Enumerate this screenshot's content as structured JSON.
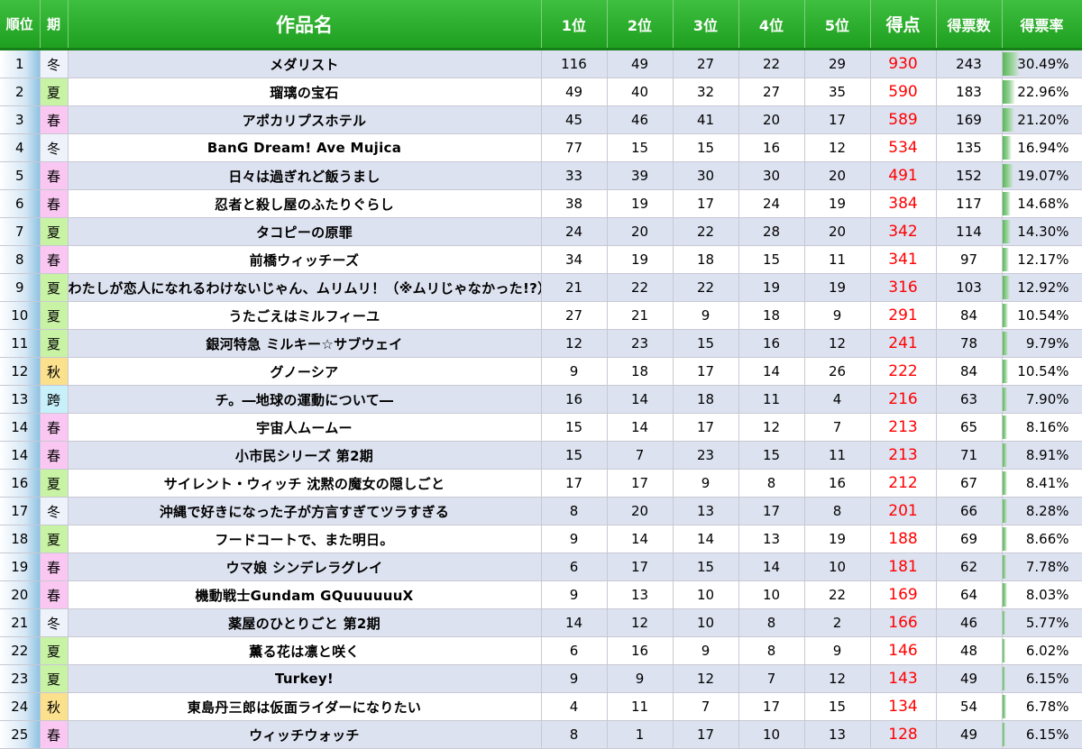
{
  "headers": {
    "rank": "順位",
    "season": "期",
    "title": "作品名",
    "p1": "1位",
    "p2": "2位",
    "p3": "3位",
    "p4": "4位",
    "p5": "5位",
    "score": "得点",
    "votes": "得票数",
    "rate": "得票率"
  },
  "colors": {
    "header_green": "#2aad2a",
    "score_red": "#ff0000",
    "row_alt": "#dde2f0",
    "season_summer": "#c8f2a4",
    "season_spring": "#fac7f2",
    "season_autumn": "#fbe08e",
    "season_cross": "#c7f0fb"
  },
  "rows": [
    {
      "rank": "1",
      "season": "冬",
      "title": "メダリスト",
      "p1": "116",
      "p2": "49",
      "p3": "27",
      "p4": "22",
      "p5": "29",
      "score": "930",
      "votes": "243",
      "rate": "30.49%",
      "rate_value": 30.49
    },
    {
      "rank": "2",
      "season": "夏",
      "title": "瑠璃の宝石",
      "p1": "49",
      "p2": "40",
      "p3": "32",
      "p4": "27",
      "p5": "35",
      "score": "590",
      "votes": "183",
      "rate": "22.96%",
      "rate_value": 22.96
    },
    {
      "rank": "3",
      "season": "春",
      "title": "アポカリプスホテル",
      "p1": "45",
      "p2": "46",
      "p3": "41",
      "p4": "20",
      "p5": "17",
      "score": "589",
      "votes": "169",
      "rate": "21.20%",
      "rate_value": 21.2
    },
    {
      "rank": "4",
      "season": "冬",
      "title": "BanG Dream! Ave Mujica",
      "p1": "77",
      "p2": "15",
      "p3": "15",
      "p4": "16",
      "p5": "12",
      "score": "534",
      "votes": "135",
      "rate": "16.94%",
      "rate_value": 16.94
    },
    {
      "rank": "5",
      "season": "春",
      "title": "日々は過ぎれど飯うまし",
      "p1": "33",
      "p2": "39",
      "p3": "30",
      "p4": "30",
      "p5": "20",
      "score": "491",
      "votes": "152",
      "rate": "19.07%",
      "rate_value": 19.07
    },
    {
      "rank": "6",
      "season": "春",
      "title": "忍者と殺し屋のふたりぐらし",
      "p1": "38",
      "p2": "19",
      "p3": "17",
      "p4": "24",
      "p5": "19",
      "score": "384",
      "votes": "117",
      "rate": "14.68%",
      "rate_value": 14.68
    },
    {
      "rank": "7",
      "season": "夏",
      "title": "タコピーの原罪",
      "p1": "24",
      "p2": "20",
      "p3": "22",
      "p4": "28",
      "p5": "20",
      "score": "342",
      "votes": "114",
      "rate": "14.30%",
      "rate_value": 14.3
    },
    {
      "rank": "8",
      "season": "春",
      "title": "前橋ウィッチーズ",
      "p1": "34",
      "p2": "19",
      "p3": "18",
      "p4": "15",
      "p5": "11",
      "score": "341",
      "votes": "97",
      "rate": "12.17%",
      "rate_value": 12.17
    },
    {
      "rank": "9",
      "season": "夏",
      "title": "わたしが恋人になれるわけないじゃん、ムリムリ！（※ムリじゃなかった!?）",
      "p1": "21",
      "p2": "22",
      "p3": "22",
      "p4": "19",
      "p5": "19",
      "score": "316",
      "votes": "103",
      "rate": "12.92%",
      "rate_value": 12.92
    },
    {
      "rank": "10",
      "season": "夏",
      "title": "うたごえはミルフィーユ",
      "p1": "27",
      "p2": "21",
      "p3": "9",
      "p4": "18",
      "p5": "9",
      "score": "291",
      "votes": "84",
      "rate": "10.54%",
      "rate_value": 10.54
    },
    {
      "rank": "11",
      "season": "夏",
      "title": "銀河特急 ミルキー☆サブウェイ",
      "p1": "12",
      "p2": "23",
      "p3": "15",
      "p4": "16",
      "p5": "12",
      "score": "241",
      "votes": "78",
      "rate": "9.79%",
      "rate_value": 9.79
    },
    {
      "rank": "12",
      "season": "秋",
      "title": "グノーシア",
      "p1": "9",
      "p2": "18",
      "p3": "17",
      "p4": "14",
      "p5": "26",
      "score": "222",
      "votes": "84",
      "rate": "10.54%",
      "rate_value": 10.54
    },
    {
      "rank": "13",
      "season": "跨",
      "title": "チ。―地球の運動について―",
      "p1": "16",
      "p2": "14",
      "p3": "18",
      "p4": "11",
      "p5": "4",
      "score": "216",
      "votes": "63",
      "rate": "7.90%",
      "rate_value": 7.9
    },
    {
      "rank": "14",
      "season": "春",
      "title": "宇宙人ムームー",
      "p1": "15",
      "p2": "14",
      "p3": "17",
      "p4": "12",
      "p5": "7",
      "score": "213",
      "votes": "65",
      "rate": "8.16%",
      "rate_value": 8.16
    },
    {
      "rank": "14",
      "season": "春",
      "title": "小市民シリーズ 第2期",
      "p1": "15",
      "p2": "7",
      "p3": "23",
      "p4": "15",
      "p5": "11",
      "score": "213",
      "votes": "71",
      "rate": "8.91%",
      "rate_value": 8.91
    },
    {
      "rank": "16",
      "season": "夏",
      "title": "サイレント・ウィッチ 沈黙の魔女の隠しごと",
      "p1": "17",
      "p2": "17",
      "p3": "9",
      "p4": "8",
      "p5": "16",
      "score": "212",
      "votes": "67",
      "rate": "8.41%",
      "rate_value": 8.41
    },
    {
      "rank": "17",
      "season": "冬",
      "title": "沖縄で好きになった子が方言すぎてツラすぎる",
      "p1": "8",
      "p2": "20",
      "p3": "13",
      "p4": "17",
      "p5": "8",
      "score": "201",
      "votes": "66",
      "rate": "8.28%",
      "rate_value": 8.28
    },
    {
      "rank": "18",
      "season": "夏",
      "title": "フードコートで、また明日。",
      "p1": "9",
      "p2": "14",
      "p3": "14",
      "p4": "13",
      "p5": "19",
      "score": "188",
      "votes": "69",
      "rate": "8.66%",
      "rate_value": 8.66
    },
    {
      "rank": "19",
      "season": "春",
      "title": "ウマ娘 シンデレラグレイ",
      "p1": "6",
      "p2": "17",
      "p3": "15",
      "p4": "14",
      "p5": "10",
      "score": "181",
      "votes": "62",
      "rate": "7.78%",
      "rate_value": 7.78
    },
    {
      "rank": "20",
      "season": "春",
      "title": "機動戦士Gundam GQuuuuuuX",
      "p1": "9",
      "p2": "13",
      "p3": "10",
      "p4": "10",
      "p5": "22",
      "score": "169",
      "votes": "64",
      "rate": "8.03%",
      "rate_value": 8.03
    },
    {
      "rank": "21",
      "season": "冬",
      "title": "薬屋のひとりごと 第2期",
      "p1": "14",
      "p2": "12",
      "p3": "10",
      "p4": "8",
      "p5": "2",
      "score": "166",
      "votes": "46",
      "rate": "5.77%",
      "rate_value": 5.77
    },
    {
      "rank": "22",
      "season": "夏",
      "title": "薫る花は凛と咲く",
      "p1": "6",
      "p2": "16",
      "p3": "9",
      "p4": "8",
      "p5": "9",
      "score": "146",
      "votes": "48",
      "rate": "6.02%",
      "rate_value": 6.02
    },
    {
      "rank": "23",
      "season": "夏",
      "title": "Turkey!",
      "p1": "9",
      "p2": "9",
      "p3": "12",
      "p4": "7",
      "p5": "12",
      "score": "143",
      "votes": "49",
      "rate": "6.15%",
      "rate_value": 6.15
    },
    {
      "rank": "24",
      "season": "秋",
      "title": "東島丹三郎は仮面ライダーになりたい",
      "p1": "4",
      "p2": "11",
      "p3": "7",
      "p4": "17",
      "p5": "15",
      "score": "134",
      "votes": "54",
      "rate": "6.78%",
      "rate_value": 6.78
    },
    {
      "rank": "25",
      "season": "春",
      "title": "ウィッチウォッチ",
      "p1": "8",
      "p2": "1",
      "p3": "17",
      "p4": "10",
      "p5": "13",
      "score": "128",
      "votes": "49",
      "rate": "6.15%",
      "rate_value": 6.15
    }
  ]
}
